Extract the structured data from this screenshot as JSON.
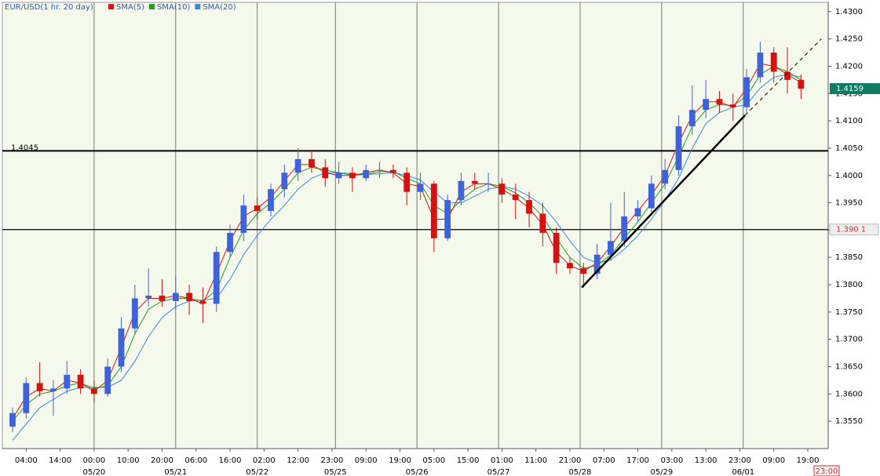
{
  "chart_data": {
    "type": "candlestick",
    "title": "EUR/USD(1 hr. 20 day)",
    "up_color": "#3f62d8",
    "down_color": "#d41212",
    "x": [
      -24,
      -20,
      -16,
      -12,
      -8,
      -4,
      0,
      4,
      8,
      12,
      16,
      20,
      24,
      28,
      32,
      36,
      40,
      44,
      48,
      52,
      56,
      60,
      64,
      68,
      72,
      76,
      80,
      84,
      88,
      92,
      96,
      100,
      104,
      108,
      112,
      116,
      120,
      124,
      128,
      132,
      136,
      140,
      144,
      148,
      152,
      156,
      160,
      164,
      168,
      172,
      176,
      180,
      184,
      188,
      192,
      196,
      200,
      204,
      208
    ],
    "open": [
      1.354,
      1.3565,
      1.362,
      1.3605,
      1.361,
      1.3635,
      1.361,
      1.36,
      1.365,
      1.372,
      1.3775,
      1.378,
      1.377,
      1.3785,
      1.377,
      1.3765,
      1.386,
      1.3895,
      1.3945,
      1.3935,
      1.3975,
      1.4005,
      1.403,
      1.4015,
      1.3995,
      1.4005,
      1.3995,
      1.401,
      1.401,
      1.4005,
      1.397,
      1.3985,
      1.3885,
      1.3955,
      1.399,
      1.3985,
      1.3985,
      1.3965,
      1.3955,
      1.393,
      1.3895,
      1.384,
      1.383,
      1.382,
      1.3855,
      1.388,
      1.3925,
      1.394,
      1.3985,
      1.401,
      1.409,
      1.412,
      1.414,
      1.413,
      1.4125,
      1.418,
      1.4225,
      1.419,
      1.4175
    ],
    "high": [
      1.3575,
      1.363,
      1.3658,
      1.3625,
      1.366,
      1.3645,
      1.3625,
      1.3665,
      1.374,
      1.38,
      1.383,
      1.381,
      1.3815,
      1.38,
      1.3795,
      1.387,
      1.391,
      1.3965,
      1.396,
      1.3985,
      1.402,
      1.405,
      1.4045,
      1.403,
      1.4025,
      1.4015,
      1.402,
      1.4025,
      1.402,
      1.4015,
      1.4005,
      1.399,
      1.3965,
      1.4005,
      1.4005,
      1.4005,
      1.3995,
      1.3985,
      1.397,
      1.395,
      1.3905,
      1.385,
      1.384,
      1.3875,
      1.395,
      1.397,
      1.3955,
      1.4,
      1.403,
      1.411,
      1.4165,
      1.4175,
      1.4155,
      1.415,
      1.4195,
      1.4245,
      1.4235,
      1.4235,
      1.4185
    ],
    "low": [
      1.353,
      1.3555,
      1.3595,
      1.356,
      1.36,
      1.36,
      1.3585,
      1.3595,
      1.364,
      1.371,
      1.376,
      1.376,
      1.3755,
      1.3745,
      1.373,
      1.375,
      1.385,
      1.388,
      1.392,
      1.3925,
      1.396,
      1.399,
      1.4005,
      1.398,
      1.3985,
      1.397,
      1.399,
      1.3995,
      1.3995,
      1.3945,
      1.3955,
      1.386,
      1.388,
      1.3945,
      1.3975,
      1.397,
      1.395,
      1.392,
      1.3905,
      1.387,
      1.382,
      1.382,
      1.3795,
      1.381,
      1.3845,
      1.387,
      1.3915,
      1.393,
      1.3975,
      1.4,
      1.4075,
      1.4105,
      1.4115,
      1.41,
      1.4115,
      1.417,
      1.417,
      1.415,
      1.414
    ],
    "close": [
      1.3565,
      1.362,
      1.3605,
      1.361,
      1.3635,
      1.361,
      1.36,
      1.365,
      1.372,
      1.3775,
      1.378,
      1.377,
      1.3785,
      1.377,
      1.3765,
      1.386,
      1.3895,
      1.3945,
      1.3935,
      1.3975,
      1.4005,
      1.403,
      1.4015,
      1.3995,
      1.4005,
      1.3995,
      1.401,
      1.401,
      1.4005,
      1.397,
      1.3985,
      1.3885,
      1.3955,
      1.399,
      1.3985,
      1.3985,
      1.3965,
      1.3955,
      1.393,
      1.3895,
      1.384,
      1.383,
      1.382,
      1.3855,
      1.388,
      1.3925,
      1.394,
      1.3985,
      1.401,
      1.409,
      1.412,
      1.414,
      1.413,
      1.4125,
      1.418,
      1.4225,
      1.419,
      1.4175,
      1.4159
    ],
    "series": [
      {
        "name": "SMA(5)",
        "color": "#e01010",
        "values": [
          1.3555,
          1.3595,
          1.361,
          1.3605,
          1.3625,
          1.362,
          1.3605,
          1.3625,
          1.3685,
          1.375,
          1.3775,
          1.3775,
          1.378,
          1.3775,
          1.3765,
          1.382,
          1.388,
          1.3925,
          1.394,
          1.396,
          1.399,
          1.402,
          1.402,
          1.4005,
          1.4,
          1.4,
          1.4005,
          1.401,
          1.4005,
          1.3985,
          1.398,
          1.392,
          1.392,
          1.397,
          1.3985,
          1.3985,
          1.3975,
          1.396,
          1.394,
          1.391,
          1.386,
          1.3835,
          1.3825,
          1.384,
          1.387,
          1.3905,
          1.3935,
          1.3965,
          1.4,
          1.406,
          1.411,
          1.4135,
          1.4135,
          1.4125,
          1.416,
          1.4205,
          1.42,
          1.4185,
          1.417
        ]
      },
      {
        "name": "SMA(10)",
        "color": "#1ea01e",
        "values": [
          1.355,
          1.358,
          1.36,
          1.3605,
          1.3615,
          1.362,
          1.361,
          1.3615,
          1.365,
          1.371,
          1.3755,
          1.377,
          1.3775,
          1.3775,
          1.377,
          1.379,
          1.385,
          1.39,
          1.393,
          1.395,
          1.3975,
          1.4005,
          1.4015,
          1.401,
          1.4005,
          1.4,
          1.4002,
          1.4007,
          1.4007,
          1.3995,
          1.3985,
          1.3945,
          1.393,
          1.3955,
          1.3975,
          1.3985,
          1.398,
          1.3968,
          1.395,
          1.3925,
          1.3885,
          1.385,
          1.383,
          1.3835,
          1.3855,
          1.3885,
          1.3915,
          1.395,
          1.3985,
          1.4035,
          1.409,
          1.412,
          1.413,
          1.4128,
          1.4145,
          1.4185,
          1.42,
          1.419,
          1.4175
        ]
      },
      {
        "name": "SMA(20)",
        "color": "#3a86e8",
        "values": [
          1.3515,
          1.3545,
          1.3575,
          1.359,
          1.3605,
          1.3612,
          1.3612,
          1.3612,
          1.3625,
          1.366,
          1.3705,
          1.374,
          1.376,
          1.377,
          1.3772,
          1.3775,
          1.381,
          1.3855,
          1.389,
          1.392,
          1.3945,
          1.3975,
          1.3995,
          1.4005,
          1.4005,
          1.4003,
          1.4002,
          1.4003,
          1.4005,
          1.4,
          1.3992,
          1.397,
          1.395,
          1.395,
          1.3962,
          1.3975,
          1.398,
          1.3975,
          1.3962,
          1.3945,
          1.3915,
          1.388,
          1.385,
          1.384,
          1.3845,
          1.3865,
          1.389,
          1.392,
          1.3955,
          1.3995,
          1.405,
          1.4095,
          1.4115,
          1.4125,
          1.413,
          1.416,
          1.418,
          1.4185,
          1.418
        ]
      }
    ],
    "xlim": [
      -27,
      216
    ],
    "ylim": [
      1.35,
      1.4317
    ],
    "xticks": [
      {
        "value": -20,
        "label": "04:00"
      },
      {
        "value": -10,
        "label": "14:00"
      },
      {
        "value": 0,
        "label": "00:00"
      },
      {
        "value": 10,
        "label": "10:00"
      },
      {
        "value": 20,
        "label": "20:00"
      },
      {
        "value": 30,
        "label": "06:00"
      },
      {
        "value": 40,
        "label": "16:00"
      },
      {
        "value": 50,
        "label": "02:00"
      },
      {
        "value": 60,
        "label": "12:00"
      },
      {
        "value": 70,
        "label": "23:00"
      },
      {
        "value": 80,
        "label": "09:00"
      },
      {
        "value": 90,
        "label": "19:00"
      },
      {
        "value": 100,
        "label": "05:00"
      },
      {
        "value": 110,
        "label": "15:00"
      },
      {
        "value": 120,
        "label": "01:00"
      },
      {
        "value": 130,
        "label": "11:00"
      },
      {
        "value": 140,
        "label": "21:00"
      },
      {
        "value": 150,
        "label": "07:00"
      },
      {
        "value": 160,
        "label": "17:00"
      },
      {
        "value": 170,
        "label": "03:00"
      },
      {
        "value": 180,
        "label": "13:00"
      },
      {
        "value": 190,
        "label": "23:00"
      },
      {
        "value": 200,
        "label": "09:00"
      },
      {
        "value": 210,
        "label": "19:00"
      }
    ],
    "date_labels": [
      {
        "value": 0,
        "label": "05/20"
      },
      {
        "value": 24,
        "label": "05/21"
      },
      {
        "value": 48,
        "label": "05/22"
      },
      {
        "value": 71,
        "label": "05/25"
      },
      {
        "value": 95,
        "label": "05/26"
      },
      {
        "value": 119,
        "label": "05/27"
      },
      {
        "value": 143,
        "label": "05/28"
      },
      {
        "value": 167,
        "label": "05/29"
      },
      {
        "value": 191,
        "label": "06/01"
      }
    ],
    "yticks": [
      {
        "value": 1.43,
        "label": "1.4300"
      },
      {
        "value": 1.425,
        "label": "1.4250"
      },
      {
        "value": 1.42,
        "label": "1.4200"
      },
      {
        "value": 1.415,
        "label": "1.4150"
      },
      {
        "value": 1.41,
        "label": "1.4100"
      },
      {
        "value": 1.405,
        "label": "1.4050"
      },
      {
        "value": 1.4,
        "label": "1.4000"
      },
      {
        "value": 1.395,
        "label": "1.3950"
      },
      {
        "value": 1.39,
        "label": "1.3900"
      },
      {
        "value": 1.385,
        "label": "1.3850"
      },
      {
        "value": 1.38,
        "label": "1.3800"
      },
      {
        "value": 1.375,
        "label": "1.3750"
      },
      {
        "value": 1.37,
        "label": "1.3700"
      },
      {
        "value": 1.365,
        "label": "1.3650"
      },
      {
        "value": 1.36,
        "label": "1.3600"
      },
      {
        "value": 1.355,
        "label": "1.3550"
      }
    ],
    "horizontal_lines": [
      {
        "value": 1.4045,
        "label": "1.4045",
        "label_side": "left"
      },
      {
        "value": 1.3901,
        "label": "1.390 1",
        "label_side": "right"
      }
    ],
    "trendlines": [
      {
        "x": [
          143.5,
          191.5
        ],
        "y": [
          1.3795,
          1.411
        ],
        "dashed": false
      },
      {
        "x": [
          191.5,
          214
        ],
        "y": [
          1.411,
          1.425
        ],
        "dashed": true
      }
    ],
    "last_price": {
      "value": 1.4159,
      "label": "1.4159"
    },
    "cursor_time": "23:00"
  }
}
